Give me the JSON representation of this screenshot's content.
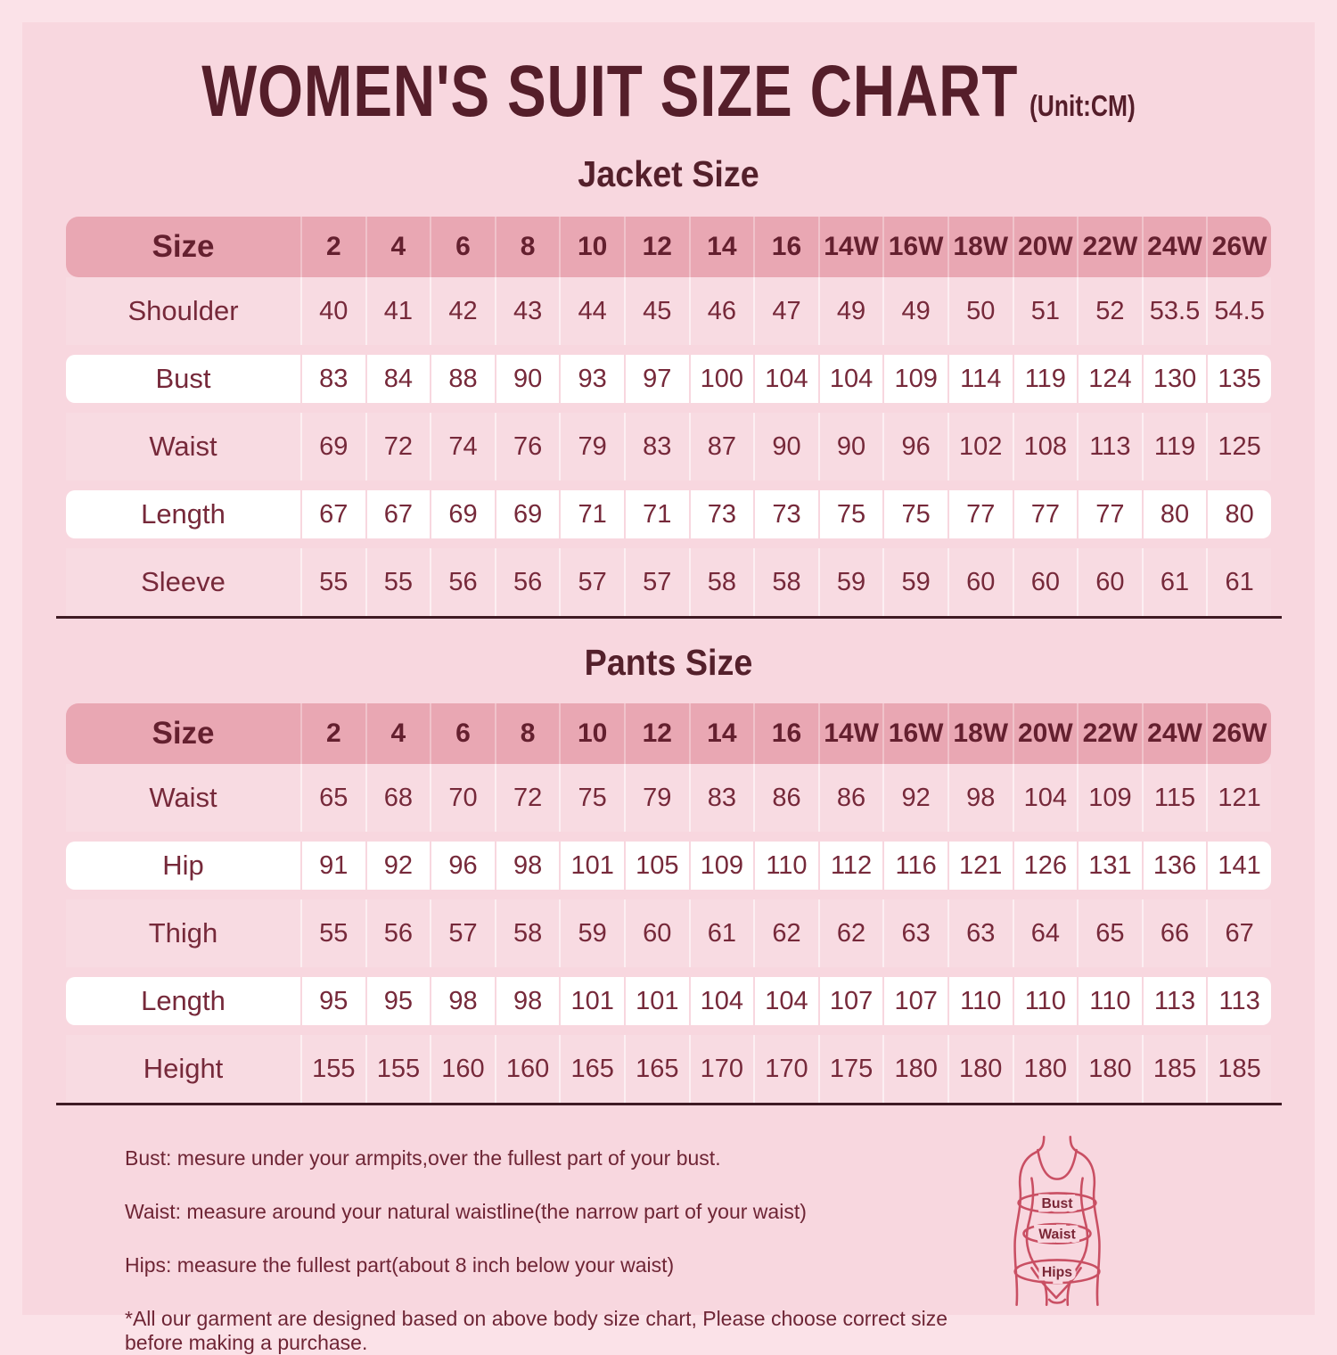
{
  "page_title": "WOMEN'S SUIT SIZE CHART",
  "unit_label": "(Unit:CM)",
  "colors": {
    "background_outer": "#fbe2e8",
    "background_inner": "#f8d7df",
    "header_row_pink": "#e9a7b3",
    "highlight_row_white": "#ffffff",
    "title_maroon": "#551e2a",
    "data_text_maroon": "#76293a",
    "figure_outline_red": "#c94f63",
    "table_underline": "#3f1b24"
  },
  "chart_data": [
    {
      "type": "table",
      "title": "Jacket Size",
      "columns": [
        "Size",
        "2",
        "4",
        "6",
        "8",
        "10",
        "12",
        "14",
        "16",
        "14W",
        "16W",
        "18W",
        "20W",
        "22W",
        "24W",
        "26W"
      ],
      "rows": [
        {
          "label": "Shoulder",
          "highlight": false,
          "values": [
            40,
            41,
            42,
            43,
            44,
            45,
            46,
            47,
            49,
            49,
            50,
            51,
            52,
            53.5,
            54.5
          ]
        },
        {
          "label": "Bust",
          "highlight": true,
          "values": [
            83,
            84,
            88,
            90,
            93,
            97,
            100,
            104,
            104,
            109,
            114,
            119,
            124,
            130,
            135
          ]
        },
        {
          "label": "Waist",
          "highlight": false,
          "values": [
            69,
            72,
            74,
            76,
            79,
            83,
            87,
            90,
            90,
            96,
            102,
            108,
            113,
            119,
            125
          ]
        },
        {
          "label": "Length",
          "highlight": true,
          "values": [
            67,
            67,
            69,
            69,
            71,
            71,
            73,
            73,
            75,
            75,
            77,
            77,
            77,
            80,
            80
          ]
        },
        {
          "label": "Sleeve",
          "highlight": false,
          "values": [
            55,
            55,
            56,
            56,
            57,
            57,
            58,
            58,
            59,
            59,
            60,
            60,
            60,
            61,
            61
          ]
        }
      ]
    },
    {
      "type": "table",
      "title": "Pants Size",
      "columns": [
        "Size",
        "2",
        "4",
        "6",
        "8",
        "10",
        "12",
        "14",
        "16",
        "14W",
        "16W",
        "18W",
        "20W",
        "22W",
        "24W",
        "26W"
      ],
      "rows": [
        {
          "label": "Waist",
          "highlight": false,
          "values": [
            65,
            68,
            70,
            72,
            75,
            79,
            83,
            86,
            86,
            92,
            98,
            104,
            109,
            115,
            121
          ]
        },
        {
          "label": "Hip",
          "highlight": true,
          "values": [
            91,
            92,
            96,
            98,
            101,
            105,
            109,
            110,
            112,
            116,
            121,
            126,
            131,
            136,
            141
          ]
        },
        {
          "label": "Thigh",
          "highlight": false,
          "values": [
            55,
            56,
            57,
            58,
            59,
            60,
            61,
            62,
            62,
            63,
            63,
            64,
            65,
            66,
            67
          ]
        },
        {
          "label": "Length",
          "highlight": true,
          "values": [
            95,
            95,
            98,
            98,
            101,
            101,
            104,
            104,
            107,
            107,
            110,
            110,
            110,
            113,
            113
          ]
        },
        {
          "label": "Height",
          "highlight": false,
          "values": [
            155,
            155,
            160,
            160,
            165,
            165,
            170,
            170,
            175,
            180,
            180,
            180,
            180,
            185,
            185
          ]
        }
      ]
    }
  ],
  "notes": [
    "Bust: mesure under your armpits,over the fullest part of your bust.",
    "Waist: measure around your natural waistline(the narrow part of your waist)",
    "Hips: measure the fullest part(about 8 inch below your waist)",
    "*All our garment are designed based on above body size chart, Please choose correct size before making a purchase."
  ],
  "figure_labels": {
    "bust": "Bust",
    "waist": "Waist",
    "hips": "Hips"
  }
}
